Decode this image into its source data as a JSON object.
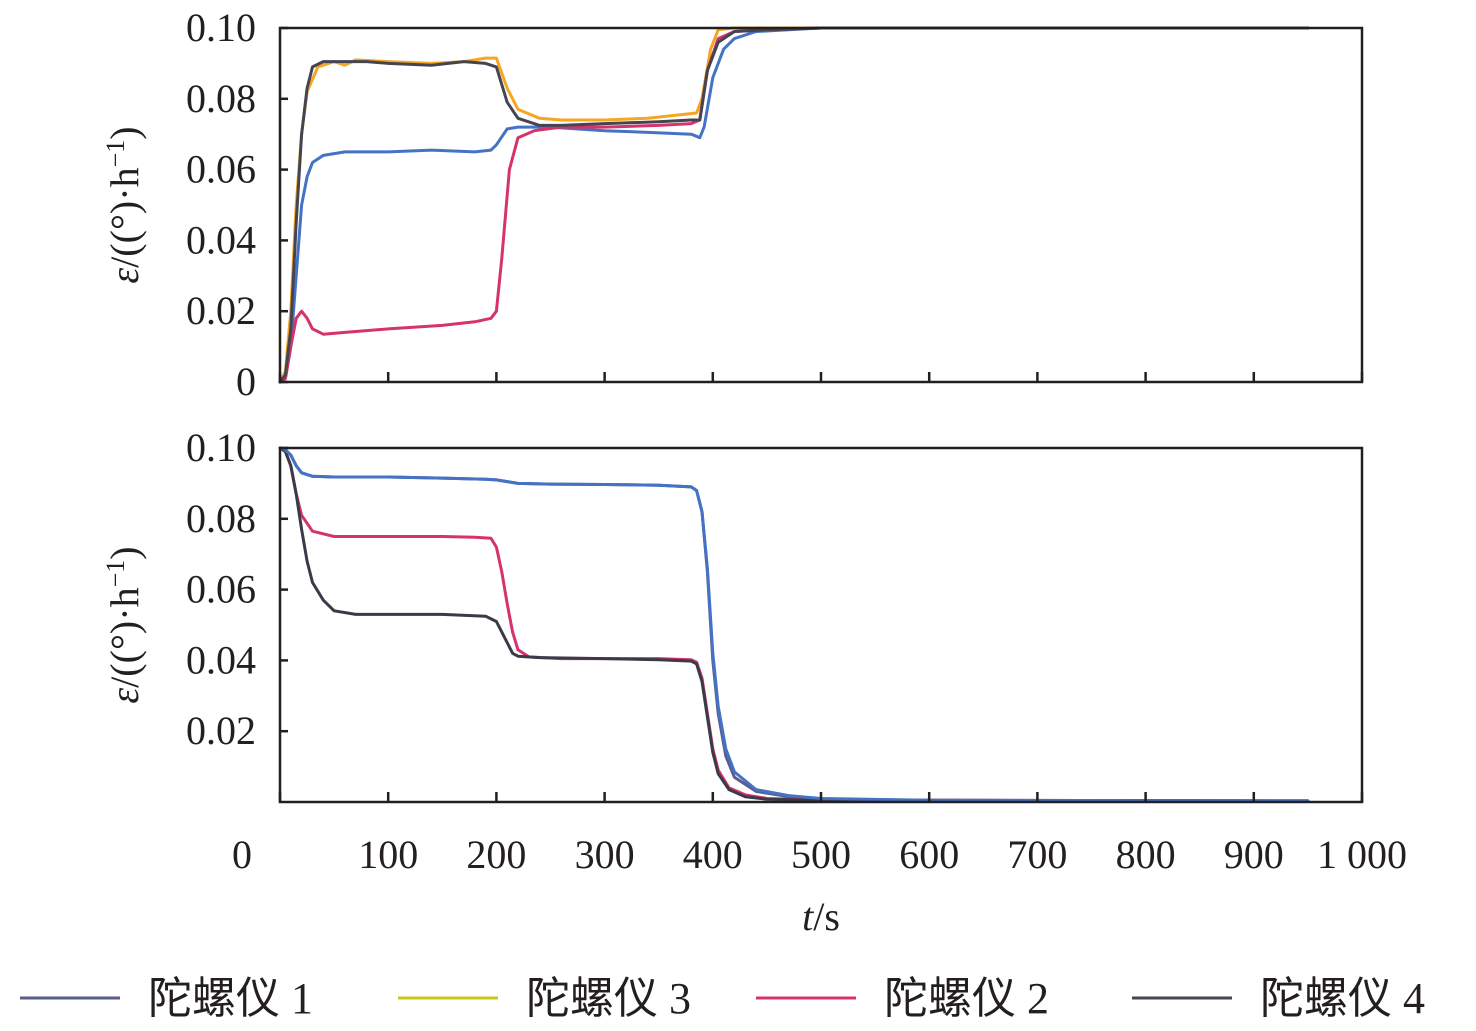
{
  "chart_data": [
    {
      "type": "line",
      "panel": "top",
      "ylabel": "ε/((°)·h⁻¹)",
      "ylabel_parts": {
        "symbol": "ε",
        "unit": "/((°)·h",
        "exp": "−1",
        "close": ")"
      },
      "xlim": [
        0,
        1000
      ],
      "ylim": [
        0,
        0.1
      ],
      "yticks": [
        0,
        0.02,
        0.04,
        0.06,
        0.08,
        0.1
      ],
      "ytick_labels": [
        "0",
        "0.02",
        "0.04",
        "0.06",
        "0.08",
        "0.10"
      ],
      "xticks": [
        0,
        100,
        200,
        300,
        400,
        500,
        600,
        700,
        800,
        900,
        1000
      ],
      "grid": false,
      "series": [
        {
          "color": "#4472c4",
          "points": [
            [
              0,
              0
            ],
            [
              5,
              0.001
            ],
            [
              10,
              0.01
            ],
            [
              15,
              0.03
            ],
            [
              20,
              0.05
            ],
            [
              25,
              0.058
            ],
            [
              30,
              0.062
            ],
            [
              40,
              0.064
            ],
            [
              60,
              0.065
            ],
            [
              100,
              0.065
            ],
            [
              140,
              0.0655
            ],
            [
              180,
              0.065
            ],
            [
              195,
              0.0655
            ],
            [
              200,
              0.067
            ],
            [
              210,
              0.0715
            ],
            [
              220,
              0.072
            ],
            [
              250,
              0.072
            ],
            [
              300,
              0.071
            ],
            [
              340,
              0.0705
            ],
            [
              380,
              0.07
            ],
            [
              388,
              0.069
            ],
            [
              392,
              0.072
            ],
            [
              400,
              0.086
            ],
            [
              410,
              0.094
            ],
            [
              420,
              0.097
            ],
            [
              440,
              0.099
            ],
            [
              470,
              0.0995
            ],
            [
              500,
              0.1
            ],
            [
              950,
              0.1
            ]
          ]
        },
        {
          "color": "#f5a623",
          "points": [
            [
              0,
              0
            ],
            [
              5,
              0.003
            ],
            [
              10,
              0.02
            ],
            [
              15,
              0.05
            ],
            [
              20,
              0.07
            ],
            [
              25,
              0.082
            ],
            [
              35,
              0.089
            ],
            [
              50,
              0.0905
            ],
            [
              60,
              0.0895
            ],
            [
              70,
              0.091
            ],
            [
              100,
              0.0905
            ],
            [
              140,
              0.09
            ],
            [
              170,
              0.0905
            ],
            [
              190,
              0.0915
            ],
            [
              200,
              0.0915
            ],
            [
              210,
              0.083
            ],
            [
              220,
              0.077
            ],
            [
              240,
              0.0745
            ],
            [
              260,
              0.074
            ],
            [
              300,
              0.074
            ],
            [
              340,
              0.0745
            ],
            [
              370,
              0.0755
            ],
            [
              385,
              0.076
            ],
            [
              390,
              0.08
            ],
            [
              398,
              0.094
            ],
            [
              405,
              0.0995
            ],
            [
              420,
              0.1
            ],
            [
              950,
              0.1
            ]
          ]
        },
        {
          "color": "#d6336c",
          "points": [
            [
              0,
              0
            ],
            [
              5,
              0.001
            ],
            [
              10,
              0.01
            ],
            [
              15,
              0.018
            ],
            [
              20,
              0.02
            ],
            [
              25,
              0.018
            ],
            [
              30,
              0.015
            ],
            [
              40,
              0.0135
            ],
            [
              60,
              0.014
            ],
            [
              100,
              0.015
            ],
            [
              150,
              0.016
            ],
            [
              180,
              0.017
            ],
            [
              195,
              0.018
            ],
            [
              200,
              0.02
            ],
            [
              205,
              0.035
            ],
            [
              212,
              0.06
            ],
            [
              220,
              0.069
            ],
            [
              235,
              0.071
            ],
            [
              260,
              0.072
            ],
            [
              300,
              0.072
            ],
            [
              350,
              0.0725
            ],
            [
              380,
              0.073
            ],
            [
              388,
              0.074
            ],
            [
              395,
              0.088
            ],
            [
              405,
              0.097
            ],
            [
              420,
              0.099
            ],
            [
              450,
              0.0995
            ],
            [
              500,
              0.1
            ],
            [
              950,
              0.1
            ]
          ]
        },
        {
          "color": "#454552",
          "points": [
            [
              0,
              0
            ],
            [
              5,
              0.002
            ],
            [
              10,
              0.015
            ],
            [
              15,
              0.045
            ],
            [
              20,
              0.07
            ],
            [
              25,
              0.083
            ],
            [
              30,
              0.089
            ],
            [
              40,
              0.0905
            ],
            [
              60,
              0.0905
            ],
            [
              80,
              0.0905
            ],
            [
              100,
              0.09
            ],
            [
              140,
              0.0895
            ],
            [
              170,
              0.0905
            ],
            [
              190,
              0.09
            ],
            [
              200,
              0.089
            ],
            [
              210,
              0.079
            ],
            [
              220,
              0.0745
            ],
            [
              240,
              0.0725
            ],
            [
              260,
              0.0725
            ],
            [
              300,
              0.073
            ],
            [
              350,
              0.0735
            ],
            [
              380,
              0.074
            ],
            [
              388,
              0.074
            ],
            [
              395,
              0.088
            ],
            [
              405,
              0.096
            ],
            [
              420,
              0.099
            ],
            [
              450,
              0.0995
            ],
            [
              500,
              0.1
            ],
            [
              950,
              0.1
            ]
          ]
        }
      ]
    },
    {
      "type": "line",
      "panel": "bottom",
      "ylabel": "ε/((°)·h⁻¹)",
      "ylabel_parts": {
        "symbol": "ε",
        "unit": "/((°)·h",
        "exp": "−1",
        "close": ")"
      },
      "xlabel": "t/s",
      "xlabel_parts": {
        "symbol": "t",
        "unit": "/s"
      },
      "xlim": [
        0,
        1000
      ],
      "ylim": [
        0,
        0.1
      ],
      "yticks": [
        0.02,
        0.04,
        0.06,
        0.08,
        0.1
      ],
      "ytick_labels": [
        "0.02",
        "0.04",
        "0.06",
        "0.08",
        "0.10"
      ],
      "xticks": [
        0,
        100,
        200,
        300,
        400,
        500,
        600,
        700,
        800,
        900,
        1000
      ],
      "xtick_labels": [
        "0",
        "100",
        "200",
        "300",
        "400",
        "500",
        "600",
        "700",
        "800",
        "900",
        "1 000"
      ],
      "grid": false,
      "series": [
        {
          "color": "#5a5e8c",
          "points": [
            [
              0,
              0.1
            ],
            [
              5,
              0.0995
            ],
            [
              10,
              0.098
            ],
            [
              15,
              0.095
            ],
            [
              20,
              0.093
            ],
            [
              30,
              0.092
            ],
            [
              50,
              0.0918
            ],
            [
              100,
              0.0918
            ],
            [
              150,
              0.0915
            ],
            [
              190,
              0.0912
            ],
            [
              200,
              0.091
            ],
            [
              220,
              0.09
            ],
            [
              250,
              0.0898
            ],
            [
              300,
              0.0897
            ],
            [
              350,
              0.0895
            ],
            [
              380,
              0.089
            ],
            [
              385,
              0.088
            ],
            [
              390,
              0.082
            ],
            [
              395,
              0.065
            ],
            [
              400,
              0.04
            ],
            [
              405,
              0.025
            ],
            [
              412,
              0.013
            ],
            [
              420,
              0.007
            ],
            [
              440,
              0.003
            ],
            [
              470,
              0.0015
            ],
            [
              500,
              0.0008
            ],
            [
              600,
              0.0005
            ],
            [
              950,
              0.0003
            ]
          ]
        },
        {
          "color": "#d6336c",
          "points": [
            [
              0,
              0.1
            ],
            [
              5,
              0.099
            ],
            [
              10,
              0.095
            ],
            [
              15,
              0.087
            ],
            [
              20,
              0.081
            ],
            [
              30,
              0.0765
            ],
            [
              50,
              0.075
            ],
            [
              100,
              0.075
            ],
            [
              150,
              0.075
            ],
            [
              180,
              0.0748
            ],
            [
              195,
              0.0745
            ],
            [
              200,
              0.072
            ],
            [
              205,
              0.065
            ],
            [
              210,
              0.056
            ],
            [
              215,
              0.048
            ],
            [
              220,
              0.043
            ],
            [
              230,
              0.041
            ],
            [
              260,
              0.0405
            ],
            [
              300,
              0.0405
            ],
            [
              350,
              0.0405
            ],
            [
              380,
              0.0402
            ],
            [
              385,
              0.0395
            ],
            [
              390,
              0.035
            ],
            [
              395,
              0.025
            ],
            [
              400,
              0.015
            ],
            [
              405,
              0.009
            ],
            [
              415,
              0.004
            ],
            [
              430,
              0.002
            ],
            [
              450,
              0.001
            ],
            [
              500,
              0.0005
            ],
            [
              950,
              0.0003
            ]
          ]
        },
        {
          "color": "#3a3a48",
          "points": [
            [
              0,
              0.1
            ],
            [
              5,
              0.099
            ],
            [
              10,
              0.095
            ],
            [
              15,
              0.087
            ],
            [
              20,
              0.077
            ],
            [
              25,
              0.068
            ],
            [
              30,
              0.062
            ],
            [
              40,
              0.057
            ],
            [
              50,
              0.054
            ],
            [
              70,
              0.053
            ],
            [
              100,
              0.053
            ],
            [
              150,
              0.053
            ],
            [
              190,
              0.0525
            ],
            [
              200,
              0.051
            ],
            [
              205,
              0.048
            ],
            [
              210,
              0.045
            ],
            [
              215,
              0.042
            ],
            [
              220,
              0.0412
            ],
            [
              240,
              0.0408
            ],
            [
              300,
              0.0405
            ],
            [
              350,
              0.0402
            ],
            [
              380,
              0.0398
            ],
            [
              385,
              0.039
            ],
            [
              390,
              0.034
            ],
            [
              395,
              0.024
            ],
            [
              400,
              0.014
            ],
            [
              405,
              0.008
            ],
            [
              415,
              0.0035
            ],
            [
              430,
              0.0015
            ],
            [
              450,
              0.0008
            ],
            [
              500,
              0.0005
            ],
            [
              950,
              0.0003
            ]
          ]
        },
        {
          "color": "#4472c4",
          "points": [
            [
              0,
              0.1
            ],
            [
              5,
              0.0995
            ],
            [
              10,
              0.098
            ],
            [
              15,
              0.095
            ],
            [
              20,
              0.093
            ],
            [
              30,
              0.092
            ],
            [
              50,
              0.0918
            ],
            [
              100,
              0.0918
            ],
            [
              150,
              0.0915
            ],
            [
              190,
              0.0912
            ],
            [
              200,
              0.091
            ],
            [
              220,
              0.09
            ],
            [
              250,
              0.0898
            ],
            [
              300,
              0.0897
            ],
            [
              350,
              0.0895
            ],
            [
              380,
              0.089
            ],
            [
              385,
              0.088
            ],
            [
              390,
              0.082
            ],
            [
              395,
              0.066
            ],
            [
              400,
              0.042
            ],
            [
              405,
              0.027
            ],
            [
              412,
              0.015
            ],
            [
              420,
              0.0085
            ],
            [
              440,
              0.0035
            ],
            [
              470,
              0.0018
            ],
            [
              500,
              0.001
            ],
            [
              600,
              0.0005
            ],
            [
              950,
              0.0003
            ]
          ]
        }
      ]
    }
  ],
  "legend": {
    "placement": "bottom",
    "items": [
      {
        "label": "陀螺仪 1",
        "color": "#5a5e8c"
      },
      {
        "label": "陀螺仪 3",
        "color": "#c8c81e"
      },
      {
        "label": "陀螺仪 2",
        "color": "#d6336c"
      },
      {
        "label": "陀螺仪 4",
        "color": "#454552"
      }
    ]
  }
}
